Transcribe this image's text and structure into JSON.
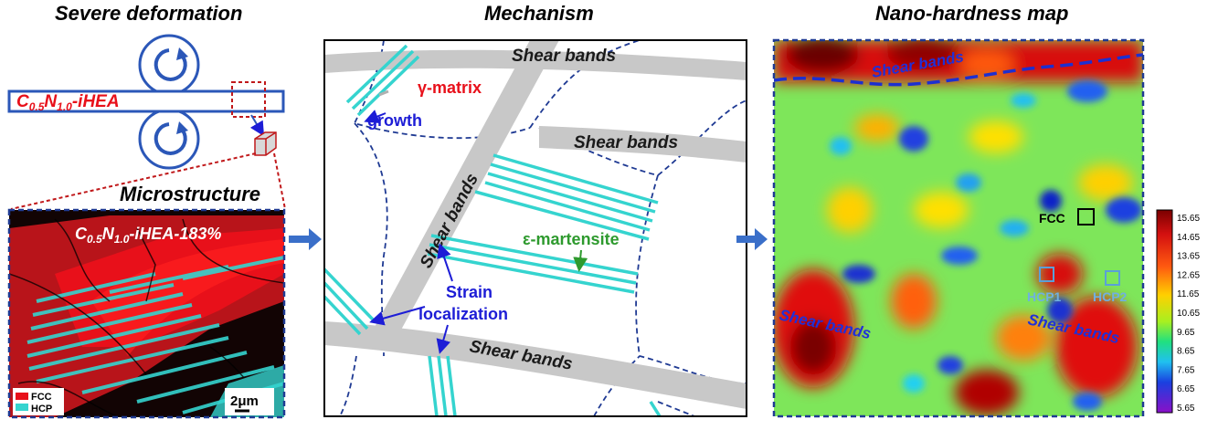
{
  "panels": {
    "deformation": {
      "title": "Severe deformation",
      "alloy_label": "C",
      "alloy_sub1": "0.5",
      "alloy_mid": "N",
      "alloy_sub2": "1.0",
      "alloy_tail": "-iHEA"
    },
    "microstructure": {
      "title": "Microstructure",
      "image_label_main": "C",
      "image_label_sub1": "0.5",
      "image_label_mid": "N",
      "image_label_sub2": "1.0",
      "image_label_tail": "-iHEA-183%",
      "legend": [
        {
          "label": "FCC",
          "color": "#e8101a"
        },
        {
          "label": "HCP",
          "color": "#35d4cf"
        }
      ],
      "scale_bar": "2μm"
    },
    "mechanism": {
      "title": "Mechanism",
      "shear_bands": [
        "Shear bands",
        "Shear bands",
        "Shear bands",
        "Shear bands"
      ],
      "gamma_matrix": "γ-matrix",
      "growth": "growth",
      "epsilon_martensite": "ε-martensite",
      "strain_line1": "Strain",
      "strain_line2": "localization"
    },
    "hardness_map": {
      "title": "Nano-hardness map",
      "shear_bands": [
        "Shear bands",
        "Shear bands",
        "Shear bands"
      ],
      "regions": [
        "FCC",
        "HCP1",
        "HCP2"
      ],
      "colorbar_ticks": [
        "15.65",
        "14.65",
        "13.65",
        "12.65",
        "11.65",
        "10.65",
        "9.65",
        "8.65",
        "7.65",
        "6.65",
        "5.65"
      ]
    }
  },
  "colors": {
    "frame_blue": "#1f3a93",
    "red_label": "#e8101a",
    "cyan": "#35d4cf",
    "band_gray": "#c8c8c8",
    "green_label": "#2e9a2e",
    "blue_label": "#1d1dd6"
  }
}
